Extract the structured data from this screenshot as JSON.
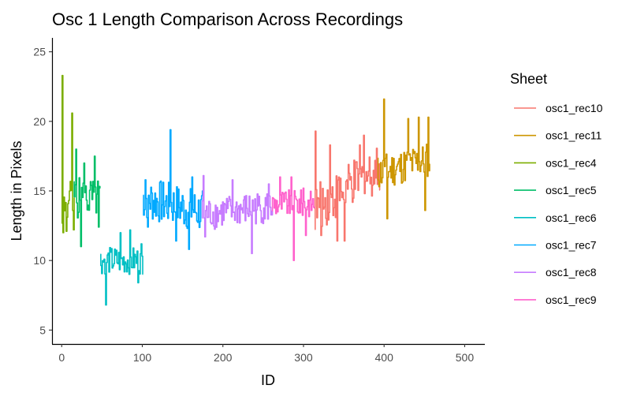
{
  "chart_data": {
    "type": "line",
    "title": "Osc 1 Length Comparison Across Recordings",
    "xlabel": "ID",
    "ylabel": "Length in Pixels",
    "xlim": [
      -12,
      525
    ],
    "ylim": [
      4.0,
      26.0
    ],
    "x_ticks": [
      0,
      100,
      200,
      300,
      400,
      500
    ],
    "y_ticks": [
      5,
      10,
      15,
      20,
      25
    ],
    "grid": false,
    "legend_title": "Sheet",
    "legend_position": "right",
    "series": [
      {
        "name": "osc1_rec10",
        "color": "#F8766D",
        "x_range": [
          314,
          395
        ],
        "base": 15.2,
        "trend": 1.5,
        "noise": 1.7,
        "seed": 10,
        "peaks": [
          [
            315,
            19.3
          ],
          [
            322,
            11.8
          ],
          [
            333,
            18.3
          ],
          [
            342,
            11.4
          ],
          [
            351,
            11.4
          ],
          [
            370,
            18.3
          ],
          [
            375,
            19.0
          ]
        ]
      },
      {
        "name": "osc1_rec11",
        "color": "#CD9600",
        "x_range": [
          392,
          457
        ],
        "base": 16.8,
        "trend": 0.5,
        "noise": 1.3,
        "seed": 11,
        "peaks": [
          [
            400,
            21.6
          ],
          [
            404,
            13.0
          ],
          [
            430,
            20.2
          ],
          [
            443,
            20.3
          ],
          [
            451,
            13.6
          ],
          [
            455,
            20.3
          ]
        ]
      },
      {
        "name": "osc1_rec4",
        "color": "#7CAE00",
        "x_range": [
          0,
          16
        ],
        "base": 14.2,
        "trend": 0.0,
        "noise": 1.7,
        "seed": 4,
        "peaks": [
          [
            1,
            23.3
          ],
          [
            2,
            12.0
          ],
          [
            6,
            12.1
          ],
          [
            13,
            20.6
          ],
          [
            15,
            12.2
          ]
        ]
      },
      {
        "name": "osc1_rec5",
        "color": "#00BE67",
        "x_range": [
          15,
          48
        ],
        "base": 14.5,
        "trend": 0.0,
        "noise": 1.5,
        "seed": 5,
        "peaks": [
          [
            18,
            18.0
          ],
          [
            24,
            11.0
          ],
          [
            28,
            17.0
          ],
          [
            41,
            17.5
          ],
          [
            46,
            12.4
          ]
        ]
      },
      {
        "name": "osc1_rec6",
        "color": "#00BFC4",
        "x_range": [
          48,
          101
        ],
        "base": 10.0,
        "trend": 0.0,
        "noise": 1.0,
        "seed": 6,
        "peaks": [
          [
            55,
            6.8
          ],
          [
            73,
            12.0
          ],
          [
            85,
            12.2
          ],
          [
            95,
            8.4
          ],
          [
            99,
            11.2
          ]
        ]
      },
      {
        "name": "osc1_rec7",
        "color": "#00A9FF",
        "x_range": [
          101,
          175
        ],
        "base": 14.0,
        "trend": -0.5,
        "noise": 1.6,
        "seed": 7,
        "peaks": [
          [
            104,
            15.8
          ],
          [
            107,
            12.4
          ],
          [
            135,
            19.4
          ],
          [
            142,
            11.4
          ],
          [
            158,
            10.8
          ],
          [
            162,
            16.0
          ]
        ]
      },
      {
        "name": "osc1_rec8",
        "color": "#C77CFF",
        "x_range": [
          174,
          262
        ],
        "base": 13.6,
        "trend": 0.3,
        "noise": 1.2,
        "seed": 8,
        "peaks": [
          [
            176,
            16.1
          ],
          [
            178,
            11.7
          ],
          [
            212,
            15.8
          ],
          [
            236,
            10.5
          ],
          [
            257,
            15.5
          ]
        ]
      },
      {
        "name": "osc1_rec9",
        "color": "#FF61CC",
        "x_range": [
          261,
          314
        ],
        "base": 14.1,
        "trend": 0.0,
        "noise": 1.0,
        "seed": 9,
        "peaks": [
          [
            271,
            16.0
          ],
          [
            285,
            16.0
          ],
          [
            288,
            10.0
          ],
          [
            300,
            15.2
          ],
          [
            303,
            11.8
          ]
        ]
      }
    ]
  }
}
